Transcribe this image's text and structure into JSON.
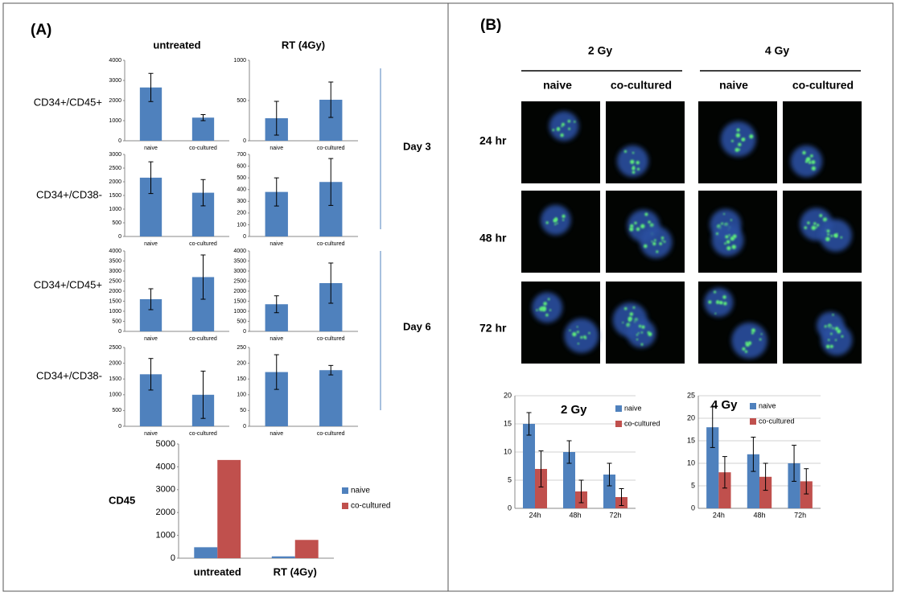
{
  "panel_a": {
    "label": "(A)",
    "columns": [
      "untreated",
      "RT (4Gy)"
    ],
    "row_labels": [
      "CD34+/CD45+",
      "CD34+/CD38-",
      "CD34+/CD45+",
      "CD34+/CD38-"
    ],
    "day_labels": [
      "Day 3",
      "Day 6"
    ]
  },
  "panel_b": {
    "label": "(B)",
    "doses": [
      "2 Gy",
      "4 Gy"
    ],
    "columns": [
      "naive",
      "co-cultured",
      "naive",
      "co-cultured"
    ],
    "rows": [
      "24 hr",
      "48 hr",
      "72 hr"
    ]
  },
  "chart_data": [
    {
      "type": "bar",
      "categories": [
        "naive",
        "co-cultured"
      ],
      "values": [
        2650,
        1150
      ],
      "errors": [
        700,
        150
      ],
      "color": "#4f81bd",
      "ylim": [
        0,
        4000
      ],
      "yticks": [
        0,
        1000,
        2000,
        3000,
        4000
      ]
    },
    {
      "type": "bar",
      "categories": [
        "naive",
        "co-cultured"
      ],
      "values": [
        280,
        510
      ],
      "errors": [
        210,
        220
      ],
      "color": "#4f81bd",
      "ylim": [
        0,
        1000
      ],
      "yticks": [
        0,
        500,
        1000
      ]
    },
    {
      "type": "bar",
      "categories": [
        "naive",
        "co-cultured"
      ],
      "values": [
        2150,
        1600
      ],
      "errors": [
        580,
        480
      ],
      "color": "#4f81bd",
      "ylim": [
        0,
        3000
      ],
      "yticks": [
        0,
        500,
        1000,
        1500,
        2000,
        2500,
        3000
      ]
    },
    {
      "type": "bar",
      "categories": [
        "naive",
        "co-cultured"
      ],
      "values": [
        380,
        465
      ],
      "errors": [
        120,
        200
      ],
      "color": "#4f81bd",
      "ylim": [
        0,
        700
      ],
      "yticks": [
        0,
        100,
        200,
        300,
        400,
        500,
        600,
        700
      ]
    },
    {
      "type": "bar",
      "categories": [
        "naive",
        "co-cultured"
      ],
      "values": [
        1600,
        2700
      ],
      "errors": [
        520,
        1100
      ],
      "color": "#4f81bd",
      "ylim": [
        0,
        4000
      ],
      "yticks": [
        0,
        500,
        1000,
        1500,
        2000,
        2500,
        3000,
        3500,
        4000
      ]
    },
    {
      "type": "bar",
      "categories": [
        "naive",
        "co-cultured"
      ],
      "values": [
        1350,
        2400
      ],
      "errors": [
        420,
        1000
      ],
      "color": "#4f81bd",
      "ylim": [
        0,
        4000
      ],
      "yticks": [
        0,
        500,
        1000,
        1500,
        2000,
        2500,
        3000,
        3500,
        4000
      ]
    },
    {
      "type": "bar",
      "categories": [
        "naive",
        "co-cultured"
      ],
      "values": [
        1650,
        1000
      ],
      "errors": [
        500,
        750
      ],
      "color": "#4f81bd",
      "ylim": [
        0,
        2500
      ],
      "yticks": [
        0,
        500,
        1000,
        1500,
        2000,
        2500
      ]
    },
    {
      "type": "bar",
      "categories": [
        "naive",
        "co-cultured"
      ],
      "values": [
        172,
        178
      ],
      "errors": [
        55,
        15
      ],
      "color": "#4f81bd",
      "ylim": [
        0,
        250
      ],
      "yticks": [
        0,
        50,
        100,
        150,
        200,
        250
      ]
    },
    {
      "type": "bar",
      "ylabel": "CD45",
      "categories": [
        "untreated",
        "RT (4Gy)"
      ],
      "series": [
        {
          "name": "naive",
          "color": "#4f81bd",
          "values": [
            480,
            80
          ]
        },
        {
          "name": "co-cultured",
          "color": "#c0504d",
          "values": [
            4300,
            800
          ]
        }
      ],
      "ylim": [
        0,
        5000
      ],
      "yticks": [
        0,
        1000,
        2000,
        3000,
        4000,
        5000
      ],
      "legend": "right"
    },
    {
      "type": "bar",
      "title": "2 Gy",
      "categories": [
        "24h",
        "48h",
        "72h"
      ],
      "series": [
        {
          "name": "naive",
          "color": "#4f81bd",
          "values": [
            15,
            10,
            6
          ],
          "errors": [
            2,
            2,
            2
          ]
        },
        {
          "name": "co-cultured",
          "color": "#c0504d",
          "values": [
            7,
            3,
            2
          ],
          "errors": [
            3.2,
            2,
            1.5
          ]
        }
      ],
      "ylim": [
        0,
        20
      ],
      "yticks": [
        0,
        5,
        10,
        15,
        20
      ],
      "grid": true,
      "legend": "upper right"
    },
    {
      "type": "bar",
      "title": "4 Gy",
      "categories": [
        "24h",
        "48h",
        "72h"
      ],
      "series": [
        {
          "name": "naive",
          "color": "#4f81bd",
          "values": [
            18,
            12,
            10
          ],
          "errors": [
            4.5,
            3.8,
            4
          ]
        },
        {
          "name": "co-cultured",
          "color": "#c0504d",
          "values": [
            8,
            7,
            6
          ],
          "errors": [
            3.5,
            3,
            2.8
          ]
        }
      ],
      "ylim": [
        0,
        25
      ],
      "yticks": [
        0,
        5,
        10,
        15,
        20,
        25
      ],
      "grid": true,
      "legend": "upper right"
    }
  ]
}
